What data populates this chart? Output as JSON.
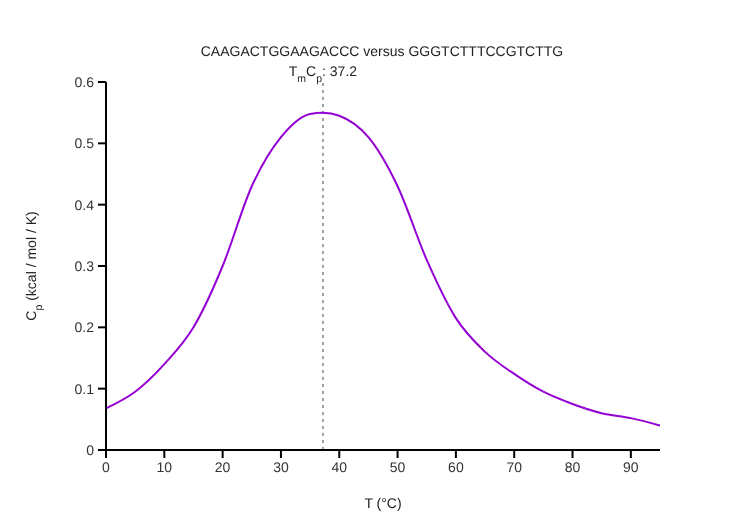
{
  "chart_data": {
    "type": "line",
    "title": "CAAGACTGGAAGACCC versus GGGTCTTTCCGTCTTG",
    "xlabel": "T (°C)",
    "ylabel": "C$_{p}$ (kcal / mol / K)",
    "x": [
      0,
      5,
      10,
      15,
      20,
      25,
      30,
      35,
      37.2,
      40,
      45,
      50,
      55,
      60,
      65,
      70,
      75,
      80,
      85,
      90,
      95
    ],
    "series": [
      {
        "color": "#9400d3",
        "values": [
          0.068,
          0.095,
          0.14,
          0.2,
          0.3,
          0.43,
          0.51,
          0.548,
          0.55,
          0.545,
          0.51,
          0.43,
          0.31,
          0.215,
          0.16,
          0.124,
          0.095,
          0.075,
          0.06,
          0.052,
          0.04
        ]
      }
    ],
    "xlim": [
      0,
      95
    ],
    "xticks": [
      0,
      10,
      20,
      30,
      40,
      50,
      60,
      70,
      80,
      90
    ],
    "ylim": [
      0,
      0.6
    ],
    "yticks": [
      0,
      0.1,
      0.2,
      0.3,
      0.4,
      0.5,
      0.6
    ],
    "ref_lines": [
      {
        "axis": "x",
        "value": 37.2,
        "label": "T$_{m}$C$_{p}$: 37.2",
        "color": "#a0a0a0",
        "line_style": "dotted"
      }
    ],
    "grid": false,
    "legend": false,
    "marker": "none",
    "line_style": "solid"
  }
}
